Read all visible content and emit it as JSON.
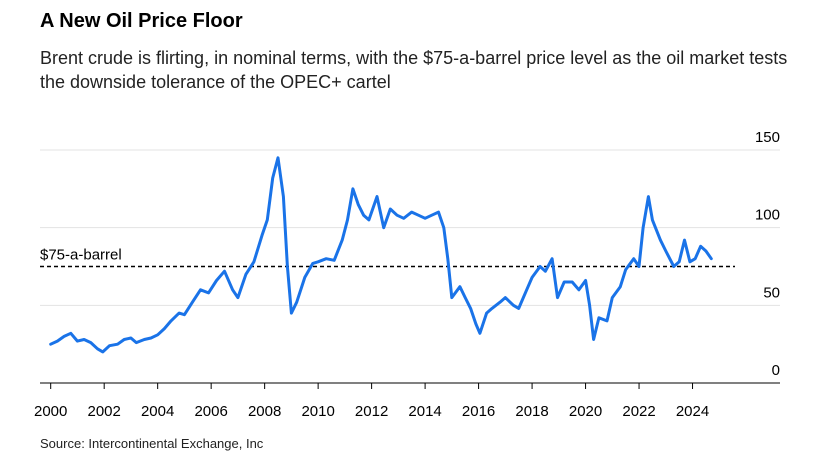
{
  "title": "A New Oil Price Floor",
  "subtitle": "Brent crude is flirting, in nominal terms, with the $75-a-barrel price level as the oil market tests the downside tolerance of the OPEC+ cartel",
  "source": "Source: Intercontinental Exchange, Inc",
  "colors": {
    "series": "#1a73e8",
    "grid": "#e3e3e3",
    "axis": "#000000",
    "reference": "#000000"
  },
  "chart_data": {
    "type": "line",
    "title": "A New Oil Price Floor",
    "xlabel": "",
    "ylabel": "",
    "xlim": [
      1999.6,
      2025.7
    ],
    "ylim": [
      0,
      150
    ],
    "y_axis_position": "right",
    "grid": "horizontal",
    "xticks": [
      2000,
      2002,
      2004,
      2006,
      2008,
      2010,
      2012,
      2014,
      2016,
      2018,
      2020,
      2022,
      2024
    ],
    "xtick_labels": [
      "2000",
      "2002",
      "2004",
      "2006",
      "2008",
      "2010",
      "2012",
      "2014",
      "2016",
      "2018",
      "2020",
      "2022",
      "2024"
    ],
    "yticks": [
      0,
      50,
      100,
      150
    ],
    "ytick_labels": [
      "0",
      "50",
      "100",
      "150"
    ],
    "reference_line": {
      "value": 75,
      "label": "$75-a-barrel",
      "style": "dashed"
    },
    "series": [
      {
        "x": [
          2000.0,
          2000.25,
          2000.5,
          2000.75,
          2001.0,
          2001.25,
          2001.5,
          2001.75,
          2001.95,
          2002.2,
          2002.5,
          2002.75,
          2003.0,
          2003.2,
          2003.5,
          2003.75,
          2004.0,
          2004.25,
          2004.5,
          2004.8,
          2005.0,
          2005.3,
          2005.6,
          2005.9,
          2006.2,
          2006.5,
          2006.8,
          2007.0,
          2007.3,
          2007.6,
          2007.9,
          2008.1,
          2008.3,
          2008.5,
          2008.7,
          2008.85,
          2009.0,
          2009.2,
          2009.5,
          2009.8,
          2010.0,
          2010.3,
          2010.6,
          2010.9,
          2011.1,
          2011.3,
          2011.5,
          2011.7,
          2011.9,
          2012.2,
          2012.45,
          2012.7,
          2012.95,
          2013.2,
          2013.5,
          2013.75,
          2014.0,
          2014.25,
          2014.5,
          2014.7,
          2014.85,
          2015.0,
          2015.3,
          2015.5,
          2015.7,
          2015.9,
          2016.05,
          2016.3,
          2016.5,
          2016.8,
          2017.0,
          2017.3,
          2017.5,
          2017.8,
          2018.0,
          2018.3,
          2018.5,
          2018.75,
          2018.95,
          2019.2,
          2019.5,
          2019.75,
          2020.0,
          2020.15,
          2020.3,
          2020.5,
          2020.8,
          2021.0,
          2021.3,
          2021.5,
          2021.8,
          2022.0,
          2022.15,
          2022.35,
          2022.5,
          2022.8,
          2023.0,
          2023.3,
          2023.5,
          2023.7,
          2023.9,
          2024.1,
          2024.3,
          2024.5,
          2024.7
        ],
        "y": [
          25,
          27,
          30,
          32,
          27,
          28,
          26,
          22,
          20,
          24,
          25,
          28,
          29,
          26,
          28,
          29,
          31,
          35,
          40,
          45,
          44,
          52,
          60,
          58,
          66,
          72,
          60,
          55,
          70,
          78,
          95,
          105,
          132,
          145,
          120,
          75,
          45,
          52,
          68,
          77,
          78,
          80,
          79,
          92,
          105,
          125,
          115,
          108,
          105,
          120,
          100,
          112,
          108,
          106,
          110,
          108,
          106,
          108,
          110,
          100,
          80,
          55,
          62,
          55,
          48,
          38,
          32,
          45,
          48,
          52,
          55,
          50,
          48,
          60,
          68,
          75,
          72,
          80,
          55,
          65,
          65,
          60,
          66,
          50,
          28,
          42,
          40,
          55,
          62,
          73,
          80,
          75,
          100,
          120,
          105,
          92,
          85,
          75,
          78,
          92,
          78,
          80,
          88,
          85,
          80
        ]
      }
    ]
  }
}
